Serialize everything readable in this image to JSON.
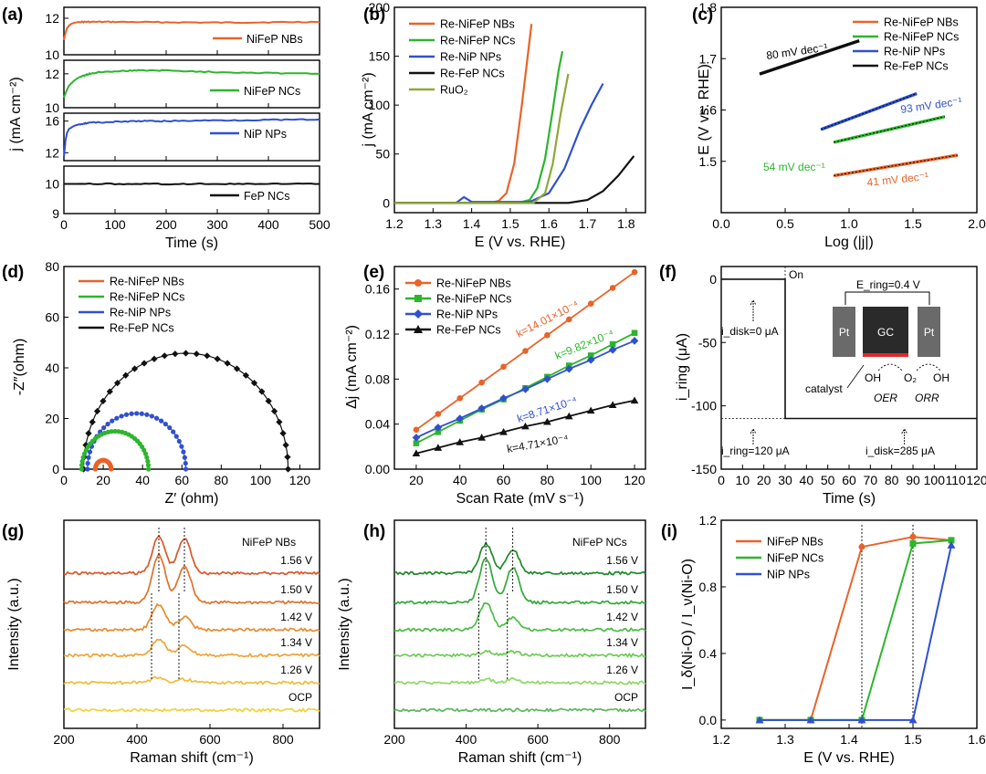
{
  "chart_data": [
    {
      "panel": "(a)",
      "type": "line",
      "xlabel": "Time (s)",
      "ylabel": "j (mA cm⁻²)",
      "xlim": [
        0,
        500
      ],
      "xticks": [
        "0",
        "100",
        "200",
        "300",
        "400",
        "500"
      ],
      "subplots": [
        {
          "name": "NiFeP NBs",
          "color": "#e8632a",
          "ylim": [
            10,
            12.6
          ],
          "yticks": [
            "10",
            "12"
          ],
          "x": [
            0,
            3,
            6,
            10,
            15,
            20,
            30,
            50,
            100,
            200,
            300,
            400,
            500
          ],
          "values": [
            10.8,
            11.2,
            11.45,
            11.6,
            11.7,
            11.75,
            11.8,
            11.8,
            11.8,
            11.78,
            11.76,
            11.78,
            11.8
          ]
        },
        {
          "name": "NiFeP NCs",
          "color": "#2db52d",
          "ylim": [
            10,
            12.8
          ],
          "yticks": [
            "10",
            "12"
          ],
          "x": [
            0,
            5,
            10,
            20,
            30,
            50,
            70,
            100,
            150,
            200,
            300,
            400,
            500
          ],
          "values": [
            10.6,
            11.0,
            11.3,
            11.6,
            11.8,
            12.0,
            12.1,
            12.15,
            12.2,
            12.2,
            12.1,
            12.05,
            12.0
          ]
        },
        {
          "name": "NiP NPs",
          "color": "#3050d0",
          "ylim": [
            11,
            17
          ],
          "yticks": [
            "12",
            "16"
          ],
          "x": [
            0,
            3,
            6,
            10,
            20,
            30,
            50,
            100,
            150,
            200,
            300,
            400,
            500
          ],
          "values": [
            11.4,
            13.5,
            14.5,
            15.0,
            15.4,
            15.6,
            15.8,
            15.9,
            16.0,
            16.0,
            16.1,
            16.15,
            16.2
          ]
        },
        {
          "name": "FeP NCs",
          "color": "#111111",
          "ylim": [
            9,
            10.6
          ],
          "yticks": [
            "9",
            "10"
          ],
          "x": [
            0,
            100,
            200,
            300,
            400,
            500
          ],
          "values": [
            10.0,
            10.0,
            10.0,
            10.0,
            10.0,
            10.0
          ]
        }
      ]
    },
    {
      "panel": "(b)",
      "type": "line",
      "xlabel": "E (V vs. RHE)",
      "ylabel": "j (mA cm⁻²)",
      "xlim": [
        1.2,
        1.85
      ],
      "ylim": [
        -10,
        200
      ],
      "xticks": [
        "1.2",
        "1.3",
        "1.4",
        "1.5",
        "1.6",
        "1.7",
        "1.8"
      ],
      "yticks": [
        "0",
        "50",
        "100",
        "150",
        "200"
      ],
      "series": [
        {
          "name": "Re-NiFeP NBs",
          "color": "#e8632a",
          "x": [
            1.2,
            1.45,
            1.47,
            1.49,
            1.51,
            1.53,
            1.545,
            1.555
          ],
          "values": [
            0,
            0,
            2,
            10,
            40,
            100,
            150,
            183
          ]
        },
        {
          "name": "Re-NiFeP NCs",
          "color": "#2db52d",
          "x": [
            1.2,
            1.52,
            1.55,
            1.57,
            1.59,
            1.61,
            1.625,
            1.635
          ],
          "values": [
            0,
            0,
            3,
            15,
            45,
            95,
            135,
            155
          ]
        },
        {
          "name": "Re-NiP NPs",
          "color": "#3050d0",
          "x": [
            1.2,
            1.36,
            1.38,
            1.4,
            1.55,
            1.6,
            1.64,
            1.68,
            1.71,
            1.74
          ],
          "values": [
            0,
            0,
            6,
            1,
            1,
            10,
            35,
            75,
            100,
            122
          ]
        },
        {
          "name": "Re-FeP NCs",
          "color": "#111111",
          "x": [
            1.2,
            1.65,
            1.7,
            1.74,
            1.78,
            1.82
          ],
          "values": [
            0,
            0,
            3,
            12,
            28,
            48
          ]
        },
        {
          "name": "RuO₂",
          "color": "#8fa838",
          "x": [
            1.2,
            1.56,
            1.59,
            1.61,
            1.63,
            1.65
          ],
          "values": [
            0,
            0,
            10,
            40,
            90,
            132
          ]
        }
      ]
    },
    {
      "panel": "(c)",
      "type": "line",
      "xlabel": "Log (|j|)",
      "ylabel": "E (V vs. RHE)",
      "xlim": [
        0.0,
        2.0
      ],
      "ylim": [
        1.4,
        1.8
      ],
      "xticks": [
        "0.0",
        "0.5",
        "1.0",
        "1.5",
        "2.0"
      ],
      "yticks": [
        "1.5",
        "1.6",
        "1.7",
        "1.8"
      ],
      "series": [
        {
          "name": "Re-NiFeP NBs",
          "color": "#e8632a",
          "x": [
            0.88,
            1.85
          ],
          "values": [
            1.472,
            1.512
          ]
        },
        {
          "name": "Re-NiFeP NCs",
          "color": "#2db52d",
          "x": [
            0.88,
            1.75
          ],
          "values": [
            1.537,
            1.587
          ]
        },
        {
          "name": "Re-NiP NPs",
          "color": "#3050d0",
          "x": [
            0.78,
            1.53
          ],
          "values": [
            1.562,
            1.632
          ]
        },
        {
          "name": "Re-FeP NCs",
          "color": "#111111",
          "x": [
            0.3,
            1.08
          ],
          "values": [
            1.67,
            1.735
          ]
        }
      ],
      "annotations": [
        "80 mV dec⁻¹",
        "93 mV dec⁻¹",
        "54 mV dec⁻¹",
        "41 mV dec⁻¹"
      ]
    },
    {
      "panel": "(d)",
      "type": "scatter",
      "xlabel": "Z′ (ohm)",
      "ylabel": "-Z″(ohm)",
      "xlim": [
        0,
        130
      ],
      "ylim": [
        0,
        80
      ],
      "xticks": [
        "0",
        "20",
        "40",
        "60",
        "80",
        "100",
        "120"
      ],
      "yticks": [
        "0",
        "20",
        "40",
        "60",
        "80"
      ],
      "series": [
        {
          "name": "Re-NiFeP NBs",
          "color": "#e8632a",
          "r_start": 16,
          "r_end": 24
        },
        {
          "name": "Re-NiFeP NCs",
          "color": "#2db52d",
          "r_start": 9,
          "r_end": 43
        },
        {
          "name": "Re-NiP NPs",
          "color": "#3050d0",
          "r_start": 12,
          "r_end": 62
        },
        {
          "name": "Re-FeP NCs",
          "color": "#111111",
          "r_start": 10,
          "r_end": 114
        }
      ]
    },
    {
      "panel": "(e)",
      "type": "scatter",
      "xlabel": "Scan Rate (mV s⁻¹)",
      "ylabel": "Δj (mA cm⁻²)",
      "xlim": [
        10,
        125
      ],
      "ylim": [
        0,
        0.18
      ],
      "xticks": [
        "20",
        "40",
        "60",
        "80",
        "100",
        "120"
      ],
      "yticks": [
        "0.00",
        "0.04",
        "0.08",
        "0.12",
        "0.16"
      ],
      "x": [
        20,
        30,
        40,
        50,
        60,
        70,
        80,
        90,
        100,
        110,
        120
      ],
      "series": [
        {
          "name": "Re-NiFeP NBs",
          "color": "#e8632a",
          "marker": "circle",
          "values": [
            0.035,
            0.049,
            0.063,
            0.077,
            0.091,
            0.105,
            0.119,
            0.133,
            0.147,
            0.161,
            0.175
          ]
        },
        {
          "name": "Re-NiFeP NCs",
          "color": "#2db52d",
          "marker": "square",
          "values": [
            0.023,
            0.033,
            0.043,
            0.053,
            0.062,
            0.072,
            0.082,
            0.092,
            0.101,
            0.111,
            0.121
          ]
        },
        {
          "name": "Re-NiP NPs",
          "color": "#3050d0",
          "marker": "diamond",
          "values": [
            0.028,
            0.037,
            0.045,
            0.054,
            0.063,
            0.071,
            0.08,
            0.089,
            0.097,
            0.106,
            0.114
          ]
        },
        {
          "name": "Re-FeP NCs",
          "color": "#111111",
          "marker": "triangle",
          "values": [
            0.014,
            0.019,
            0.024,
            0.028,
            0.033,
            0.038,
            0.042,
            0.047,
            0.052,
            0.057,
            0.061
          ]
        }
      ],
      "annotations": [
        "k=14.01×10⁻⁴",
        "k=9.82×10⁻⁴",
        "k=8.71×10⁻⁴",
        "k=4.71×10⁻⁴"
      ]
    },
    {
      "panel": "(f)",
      "type": "line",
      "xlabel": "Time (s)",
      "ylabel": "i_ring (μA)",
      "xlim": [
        0,
        120
      ],
      "ylim": [
        -150,
        10
      ],
      "xticks": [
        "0",
        "10",
        "20",
        "30",
        "40",
        "50",
        "60",
        "70",
        "80",
        "90",
        "100",
        "110",
        "120"
      ],
      "yticks": [
        "0",
        "-50",
        "-100",
        "-150"
      ],
      "series": [
        {
          "name": "i_ring",
          "color": "#111111",
          "x": [
            0,
            30,
            30,
            120
          ],
          "values": [
            0,
            0,
            -110,
            -110
          ]
        }
      ],
      "annotations": [
        "On",
        "i_disk=0 μA",
        "i_ring=120 μA",
        "i_disk=285 μA"
      ],
      "inset": {
        "ering": "E_ring=0.4 V",
        "electrodes": [
          "Pt",
          "GC",
          "Pt"
        ],
        "labels": [
          "catalyst",
          "OH",
          "O₂",
          "OH",
          "OER",
          "ORR"
        ]
      }
    },
    {
      "panel": "(g)",
      "type": "line",
      "xlabel": "Raman shift (cm⁻¹)",
      "ylabel": "Intensity (a.u.)",
      "xlim": [
        200,
        900
      ],
      "xticks": [
        "200",
        "400",
        "600",
        "800"
      ],
      "sample": "NiFeP NBs",
      "peaks_cm": [
        460,
        530
      ],
      "series": [
        {
          "name": "1.56 V",
          "color": "#d9582a"
        },
        {
          "name": "1.50 V",
          "color": "#e0712b"
        },
        {
          "name": "1.42 V",
          "color": "#e88a30"
        },
        {
          "name": "1.34 V",
          "color": "#eea43a"
        },
        {
          "name": "1.26 V",
          "color": "#f0bd3a"
        },
        {
          "name": "OCP",
          "color": "#efd23c"
        }
      ]
    },
    {
      "panel": "(h)",
      "type": "line",
      "xlabel": "Raman shift (cm⁻¹)",
      "ylabel": "Intensity (a.u.)",
      "xlim": [
        200,
        900
      ],
      "xticks": [
        "200",
        "400",
        "600",
        "800"
      ],
      "sample": "NiFeP NCs",
      "peaks_cm": [
        455,
        530
      ],
      "series": [
        {
          "name": "1.56 V",
          "color": "#1f8a2a"
        },
        {
          "name": "1.50 V",
          "color": "#33a838"
        },
        {
          "name": "1.42 V",
          "color": "#4cbd45"
        },
        {
          "name": "1.34 V",
          "color": "#6ccc55"
        },
        {
          "name": "1.26 V",
          "color": "#8ed865"
        },
        {
          "name": "OCP",
          "color": "#5cb85c"
        }
      ]
    },
    {
      "panel": "(i)",
      "type": "line",
      "xlabel": "E (V vs. RHE)",
      "ylabel": "I_δ(Ni-O) / I_ν(Ni-O)",
      "xlim": [
        1.2,
        1.6
      ],
      "ylim": [
        -0.05,
        1.2
      ],
      "xticks": [
        "1.2",
        "1.3",
        "1.4",
        "1.5",
        "1.6"
      ],
      "yticks": [
        "0.0",
        "0.4",
        "0.8",
        "1.2"
      ],
      "x": [
        1.26,
        1.34,
        1.42,
        1.5,
        1.56
      ],
      "series": [
        {
          "name": "NiFeP NBs",
          "color": "#e8632a",
          "marker": "circle",
          "values": [
            0.0,
            0.0,
            1.04,
            1.1,
            1.08
          ]
        },
        {
          "name": "NiFeP NCs",
          "color": "#2db52d",
          "marker": "square",
          "values": [
            0.0,
            0.0,
            0.0,
            1.06,
            1.08
          ]
        },
        {
          "name": "NiP NPs",
          "color": "#3050d0",
          "marker": "triangle",
          "values": [
            0.0,
            0.0,
            0.0,
            0.0,
            1.05
          ]
        }
      ]
    }
  ]
}
